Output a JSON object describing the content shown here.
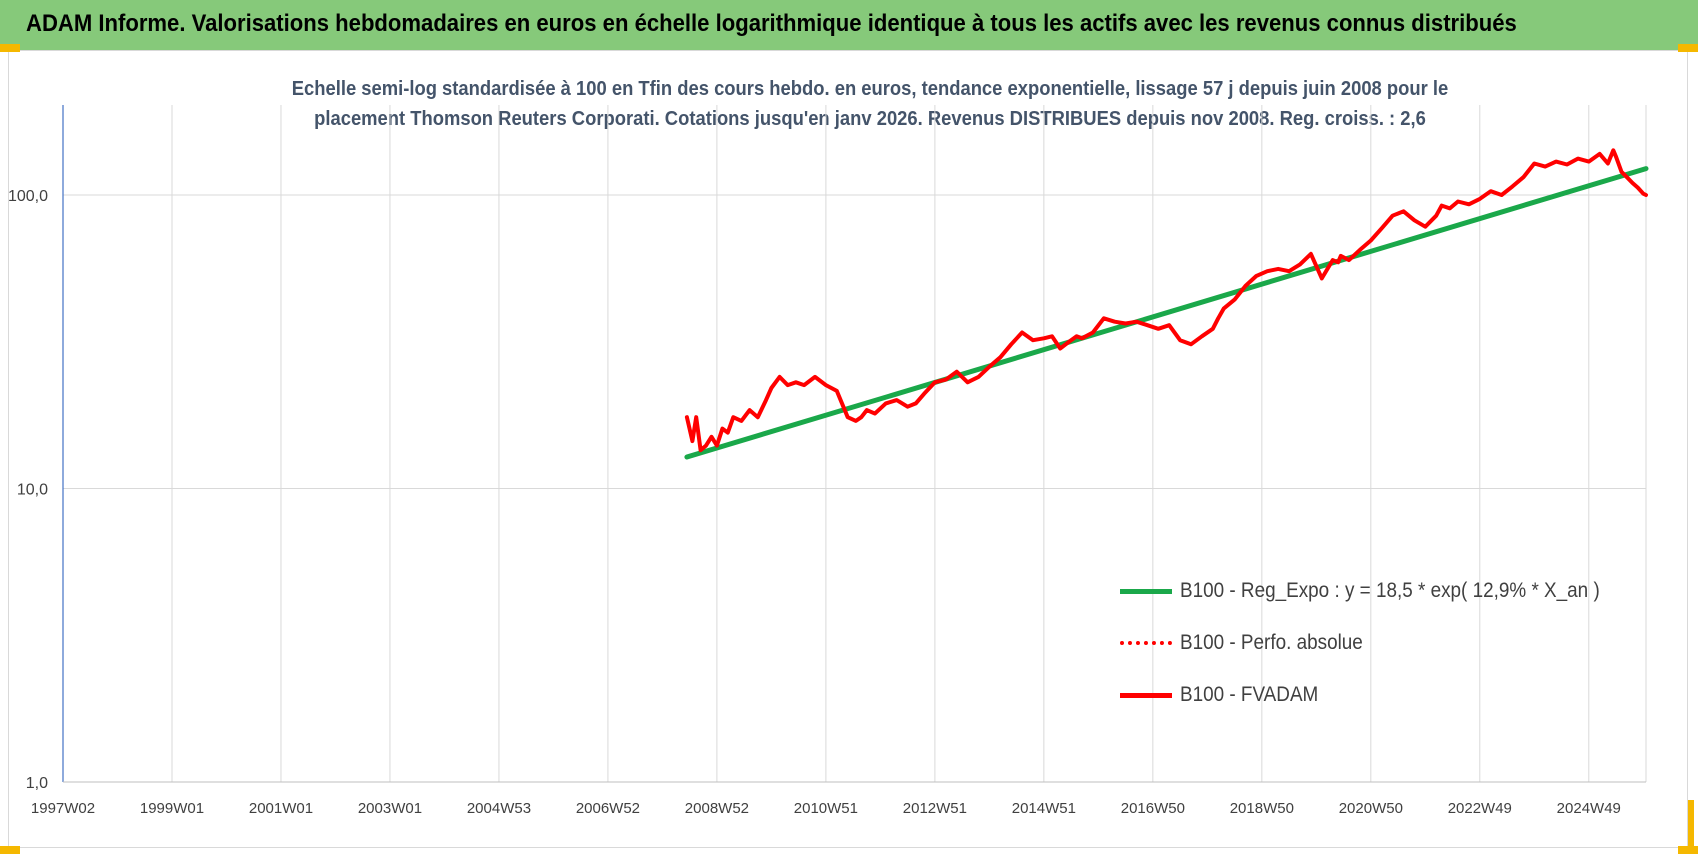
{
  "header": {
    "title": "ADAM Informe. Valorisations hebdomadaires en euros en échelle logarithmique identique à tous les actifs avec les revenus connus distribués"
  },
  "chart_data": {
    "type": "line",
    "title": "Echelle semi-log standardisée à 100 en Tfin des cours hebdo. en euros, tendance exponentielle, lissage 57 j depuis juin 2008 pour le placement Thomson Reuters Corporati. Cotations jusqu'en janv 2026. Revenus DISTRIBUES depuis nov 2008. Reg. croiss. : 2,6",
    "title_lines": [
      "Echelle semi-log standardisée à 100 en Tfin des cours hebdo. en euros, tendance exponentielle, lissage 57 j depuis juin 2008 pour le",
      "placement Thomson Reuters Corporati. Cotations jusqu'en janv 2026. Revenus DISTRIBUES depuis nov 2008. Reg. croiss. : 2,6"
    ],
    "y_scale": "log",
    "ylim": [
      1,
      200
    ],
    "y_ticks": [
      {
        "value": 1,
        "label": "1,0"
      },
      {
        "value": 10,
        "label": "10,0"
      },
      {
        "value": 100,
        "label": "100,0"
      }
    ],
    "x_range": [
      1997.0,
      2026.05
    ],
    "x_ticks": [
      {
        "value": 1997.0,
        "label": "1997W02"
      },
      {
        "value": 1999.0,
        "label": "1999W01"
      },
      {
        "value": 2001.0,
        "label": "2001W01"
      },
      {
        "value": 2003.0,
        "label": "2003W01"
      },
      {
        "value": 2005.0,
        "label": "2004W53"
      },
      {
        "value": 2007.0,
        "label": "2006W52"
      },
      {
        "value": 2009.0,
        "label": "2008W52"
      },
      {
        "value": 2011.0,
        "label": "2010W51"
      },
      {
        "value": 2013.0,
        "label": "2012W51"
      },
      {
        "value": 2015.0,
        "label": "2014W51"
      },
      {
        "value": 2017.0,
        "label": "2016W50"
      },
      {
        "value": 2019.0,
        "label": "2018W50"
      },
      {
        "value": 2021.0,
        "label": "2020W50"
      },
      {
        "value": 2023.0,
        "label": "2022W49"
      },
      {
        "value": 2025.0,
        "label": "2024W49"
      }
    ],
    "grid": true,
    "legend_position": "bottom-right",
    "series": [
      {
        "name": "B100 - Reg_Expo : y = 18,5 * exp( 12,9% * X_an )",
        "color": "#1aa84a",
        "style": "solid",
        "x": [
          2008.45,
          2026.05
        ],
        "y": [
          12.8,
          123.0
        ]
      },
      {
        "name": "B100 - Perfo. absolue",
        "color": "#ff0000",
        "style": "dotted",
        "x": [],
        "y": []
      },
      {
        "name": "B100 - FVADAM",
        "color": "#ff0000",
        "style": "solid",
        "x": [
          2008.45,
          2008.55,
          2008.62,
          2008.7,
          2008.8,
          2008.9,
          2009.0,
          2009.1,
          2009.2,
          2009.3,
          2009.45,
          2009.6,
          2009.75,
          2009.9,
          2010.0,
          2010.15,
          2010.3,
          2010.45,
          2010.6,
          2010.8,
          2011.0,
          2011.2,
          2011.4,
          2011.55,
          2011.65,
          2011.75,
          2011.9,
          2012.1,
          2012.3,
          2012.5,
          2012.65,
          2012.8,
          2013.0,
          2013.2,
          2013.4,
          2013.6,
          2013.8,
          2014.0,
          2014.2,
          2014.4,
          2014.6,
          2014.8,
          2015.0,
          2015.15,
          2015.3,
          2015.5,
          2015.6,
          2015.7,
          2015.9,
          2016.1,
          2016.3,
          2016.5,
          2016.7,
          2016.9,
          2017.1,
          2017.3,
          2017.5,
          2017.7,
          2017.9,
          2018.1,
          2018.2,
          2018.3,
          2018.5,
          2018.7,
          2018.9,
          2019.1,
          2019.3,
          2019.5,
          2019.7,
          2019.9,
          2020.1,
          2020.3,
          2020.4,
          2020.45,
          2020.6,
          2020.8,
          2021.0,
          2021.2,
          2021.4,
          2021.6,
          2021.8,
          2022.0,
          2022.2,
          2022.3,
          2022.45,
          2022.6,
          2022.8,
          2023.0,
          2023.2,
          2023.4,
          2023.6,
          2023.8,
          2024.0,
          2024.2,
          2024.4,
          2024.6,
          2024.8,
          2025.0,
          2025.2,
          2025.35,
          2025.45,
          2025.5,
          2025.6,
          2025.7,
          2025.8,
          2025.9,
          2026.0,
          2026.05
        ],
        "y": [
          17.5,
          14.5,
          17.5,
          13.5,
          14.0,
          15.0,
          14.0,
          16.0,
          15.5,
          17.5,
          17.0,
          18.5,
          17.5,
          20.0,
          22.0,
          24.0,
          22.5,
          23.0,
          22.5,
          24.0,
          22.5,
          21.5,
          17.5,
          17.0,
          17.5,
          18.5,
          18.0,
          19.5,
          20.0,
          19.0,
          19.5,
          21.0,
          23.0,
          23.5,
          25.0,
          23.0,
          24.0,
          26.0,
          28.0,
          31.0,
          34.0,
          32.0,
          32.5,
          33.0,
          30.0,
          32.0,
          33.0,
          32.5,
          34.0,
          38.0,
          37.0,
          36.5,
          37.0,
          36.0,
          35.0,
          36.0,
          32.0,
          31.0,
          33.0,
          35.0,
          38.0,
          41.0,
          44.0,
          49.0,
          53.0,
          55.0,
          56.0,
          55.0,
          58.0,
          63.0,
          52.0,
          60.0,
          59.0,
          62.0,
          60.0,
          65.0,
          70.0,
          77.0,
          85.0,
          88.0,
          82.0,
          78.0,
          85.0,
          92.0,
          90.0,
          95.0,
          93.0,
          97.0,
          103.0,
          100.0,
          107.0,
          115.0,
          128.0,
          125.0,
          130.0,
          127.0,
          133.0,
          130.0,
          138.0,
          128.0,
          142.0,
          135.0,
          120.0,
          115.0,
          110.0,
          106.0,
          101.0,
          100.0
        ]
      }
    ]
  }
}
